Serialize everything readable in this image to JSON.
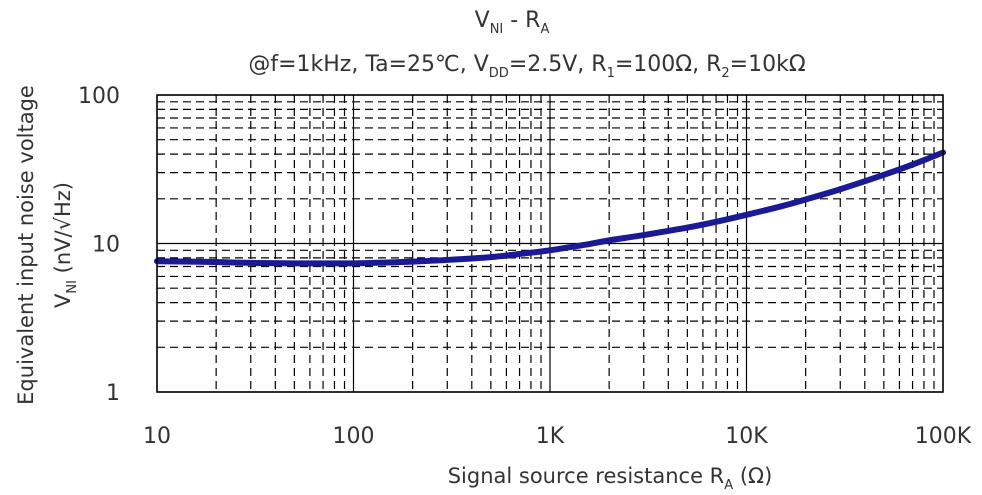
{
  "chart_data": {
    "type": "line",
    "title": "V",
    "title_sub": "NI",
    "title_dash": " - R",
    "title_sub2": "A",
    "subtitle": {
      "prefix": "@f=1kHz, Ta=25℃, V",
      "vdd_sub": "DD",
      "mid1": "=2.5V,  R",
      "r1_sub": "1",
      "mid2": "=100Ω, R",
      "r2_sub": "2",
      "suffix": "=10kΩ"
    },
    "xlabel": {
      "text": "Signal source resistance R",
      "sub": "A",
      "unit": "  (Ω)"
    },
    "ylabel": {
      "line1": "Equivalent input noise voltage",
      "line2_prefix": "V",
      "line2_sub": "NI",
      "line2_suffix": "  (nV/√Hz)"
    },
    "x_scale": "log",
    "y_scale": "log",
    "xlim": [
      10,
      100000
    ],
    "ylim": [
      1,
      100
    ],
    "x_ticks": [
      {
        "value": 10,
        "label": "10"
      },
      {
        "value": 100,
        "label": "100"
      },
      {
        "value": 1000,
        "label": "1K"
      },
      {
        "value": 10000,
        "label": "10K"
      },
      {
        "value": 100000,
        "label": "100K"
      }
    ],
    "y_ticks": [
      {
        "value": 1,
        "label": "1"
      },
      {
        "value": 10,
        "label": "10"
      },
      {
        "value": 100,
        "label": "100"
      }
    ],
    "grid": {
      "major": "solid",
      "minor": "dashed"
    },
    "series": [
      {
        "color": "#1a1a96",
        "x": [
          10,
          20,
          30,
          50,
          70,
          100,
          150,
          200,
          300,
          500,
          700,
          1000,
          1500,
          2000,
          3000,
          5000,
          7000,
          10000,
          15000,
          20000,
          30000,
          50000,
          70000,
          100000
        ],
        "y": [
          7.6,
          7.5,
          7.4,
          7.35,
          7.35,
          7.35,
          7.45,
          7.55,
          7.75,
          8.1,
          8.5,
          9.0,
          9.8,
          10.5,
          11.4,
          12.8,
          14.0,
          15.6,
          17.8,
          19.8,
          23.2,
          29.0,
          34.0,
          41.0
        ]
      }
    ]
  }
}
